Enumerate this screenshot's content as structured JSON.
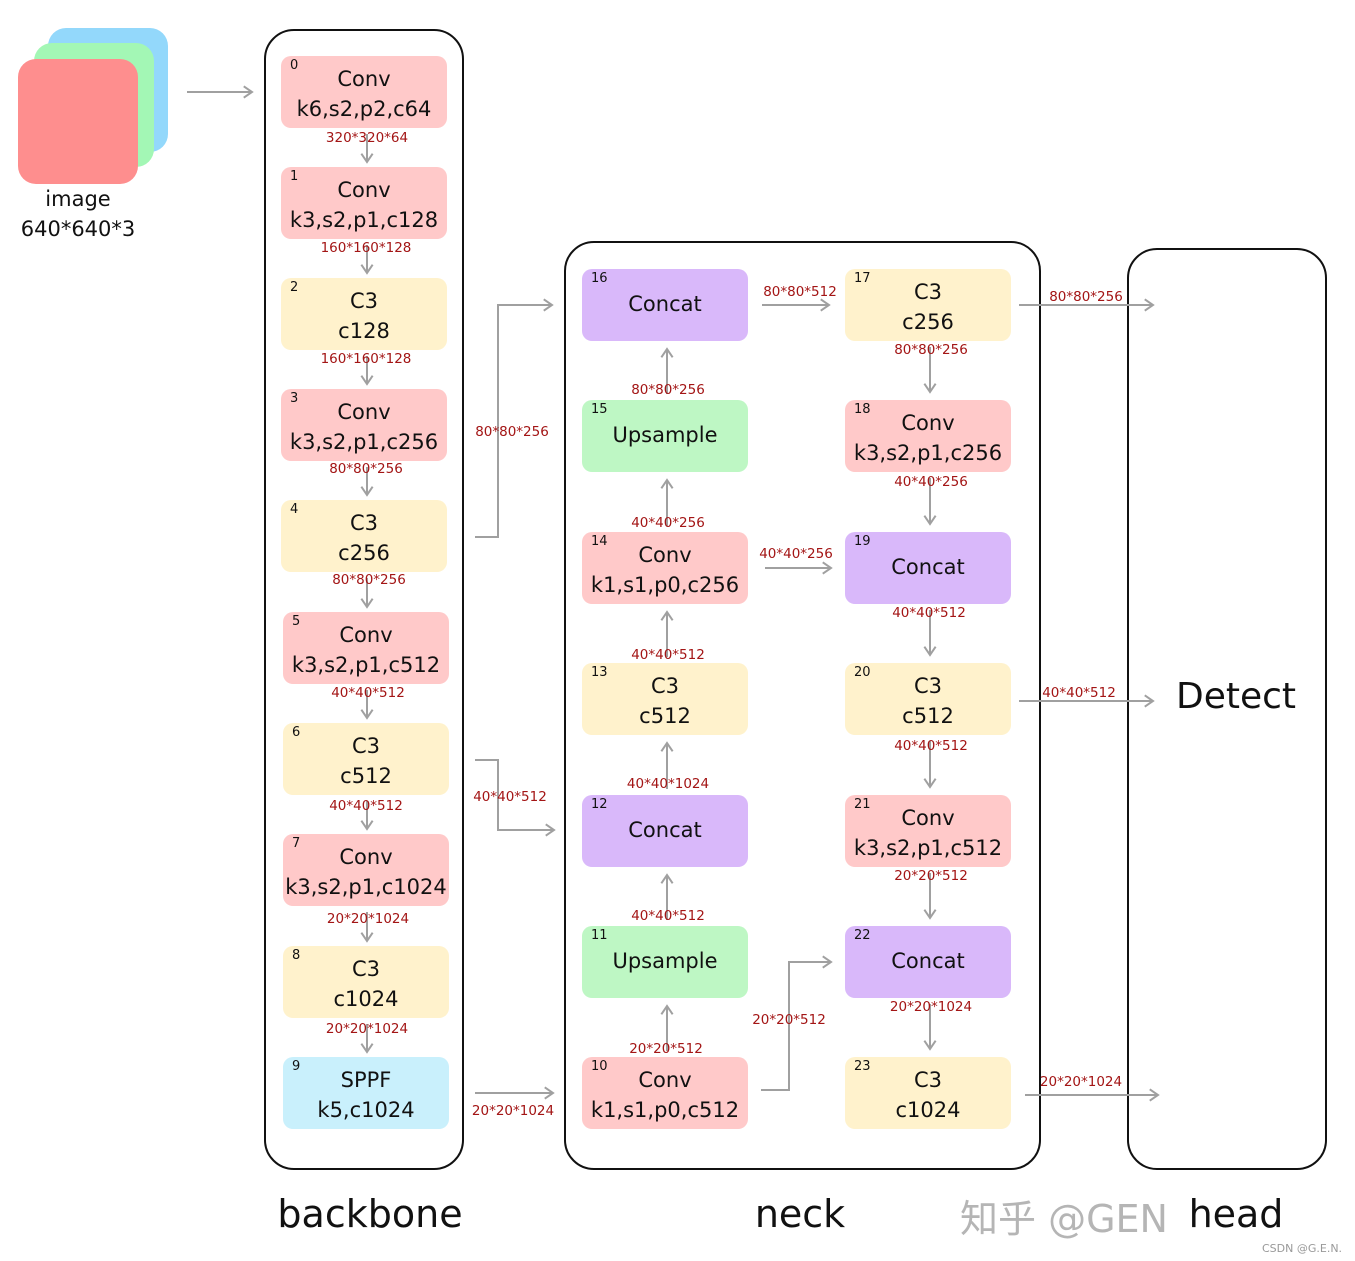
{
  "input": {
    "label": "image",
    "shape": "640*640*3"
  },
  "colors": {
    "Conv": "#ffc9c9",
    "C3": "#fff2cc",
    "Concat": "#d9b8fa",
    "Upsample": "#bef7c4",
    "SPPF": "#c9f0fc",
    "arrow": "#a0a0a0",
    "dim_text": "#a31515"
  },
  "sections": {
    "backbone": "backbone",
    "neck": "neck",
    "head": "head"
  },
  "head_block": "Detect",
  "nodes": [
    {
      "id": "0",
      "type": "Conv",
      "params": "k6,s2,p2,c64"
    },
    {
      "id": "1",
      "type": "Conv",
      "params": "k3,s2,p1,c128"
    },
    {
      "id": "2",
      "type": "C3",
      "params": "c128"
    },
    {
      "id": "3",
      "type": "Conv",
      "params": "k3,s2,p1,c256"
    },
    {
      "id": "4",
      "type": "C3",
      "params": "c256"
    },
    {
      "id": "5",
      "type": "Conv",
      "params": "k3,s2,p1,c512"
    },
    {
      "id": "6",
      "type": "C3",
      "params": "c512"
    },
    {
      "id": "7",
      "type": "Conv",
      "params": "k3,s2,p1,c1024"
    },
    {
      "id": "8",
      "type": "C3",
      "params": "c1024"
    },
    {
      "id": "9",
      "type": "SPPF",
      "params": "k5,c1024"
    },
    {
      "id": "10",
      "type": "Conv",
      "params": "k1,s1,p0,c512"
    },
    {
      "id": "11",
      "type": "Upsample",
      "params": ""
    },
    {
      "id": "12",
      "type": "Concat",
      "params": ""
    },
    {
      "id": "13",
      "type": "C3",
      "params": "c512"
    },
    {
      "id": "14",
      "type": "Conv",
      "params": "k1,s1,p0,c256"
    },
    {
      "id": "15",
      "type": "Upsample",
      "params": ""
    },
    {
      "id": "16",
      "type": "Concat",
      "params": ""
    },
    {
      "id": "17",
      "type": "C3",
      "params": "c256"
    },
    {
      "id": "18",
      "type": "Conv",
      "params": "k3,s2,p1,c256"
    },
    {
      "id": "19",
      "type": "Concat",
      "params": ""
    },
    {
      "id": "20",
      "type": "C3",
      "params": "c512"
    },
    {
      "id": "21",
      "type": "Conv",
      "params": "k3,s2,p1,c512"
    },
    {
      "id": "22",
      "type": "Concat",
      "params": ""
    },
    {
      "id": "23",
      "type": "C3",
      "params": "c1024"
    }
  ],
  "edge_labels": [
    "320*320*64",
    "160*160*128",
    "160*160*128",
    "80*80*256",
    "80*80*256",
    "40*40*512",
    "40*40*512",
    "20*20*1024",
    "20*20*1024",
    "80*80*256",
    "40*40*512",
    "20*20*1024",
    "80*80*256",
    "40*40*256",
    "40*40*512",
    "40*40*1024",
    "40*40*512",
    "20*20*512",
    "80*80*512",
    "40*40*256",
    "20*20*512",
    "80*80*256",
    "40*40*256",
    "40*40*512",
    "40*40*512",
    "20*20*512",
    "20*20*1024",
    "80*80*256",
    "40*40*512",
    "20*20*1024"
  ],
  "watermark": {
    "zhihu": "知乎 @GEN",
    "csdn": "CSDN @G.E.N."
  }
}
